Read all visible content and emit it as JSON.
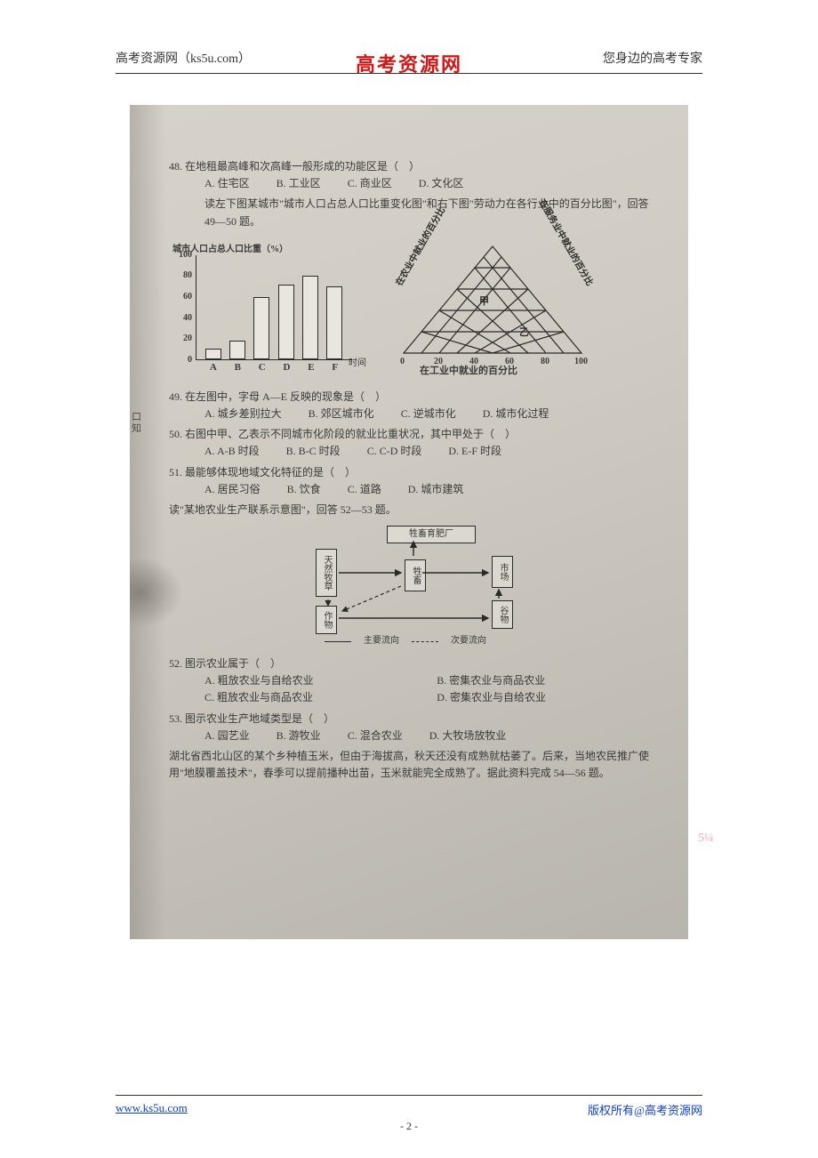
{
  "header": {
    "left": "高考资源网（ks5u.com）",
    "center": "高考资源网",
    "right": "您身边的高考专家"
  },
  "margin_note": {
    "l1": "口",
    "l2": "知"
  },
  "q48": {
    "stem": "48. 在地租最高峰和次高峰一般形成的功能区是（　）",
    "opts": {
      "a": "A. 住宅区",
      "b": "B. 工业区",
      "c": "C. 商业区",
      "d": "D. 文化区"
    }
  },
  "intro_49_50": "读左下图某城市\"城市人口占总人口比重变化图\"和右下图\"劳动力在各行业中的百分比图\"，回答 49—50 题。",
  "barchart": {
    "ylabel": "城市人口占总人口比重（%）",
    "yticks": [
      100,
      80,
      60,
      40,
      20,
      0
    ],
    "categories": [
      "A",
      "B",
      "C",
      "D",
      "E",
      "F"
    ],
    "values": [
      10,
      18,
      60,
      72,
      80,
      70
    ],
    "ymax": 100,
    "xcaption": "时间",
    "bar_border": "#2a2a28",
    "bar_fill": "#e8e6de"
  },
  "triangle": {
    "left_label": "在农业中就业的百分比",
    "right_label": "在服务业中就业的百分比",
    "bottom_label": "在工业中就业的百分比",
    "bottom_ticks": [
      0,
      20,
      40,
      60,
      80,
      100
    ],
    "side_ticks": [
      20,
      40,
      60,
      80,
      100
    ],
    "points": {
      "jia": "甲",
      "yi": "乙"
    },
    "stroke": "#2a2a28"
  },
  "q49": {
    "stem": "49. 在左图中，字母 A—E 反映的现象是（　）",
    "opts": {
      "a": "A. 城乡差别拉大",
      "b": "B. 郊区城市化",
      "c": "C. 逆城市化",
      "d": "D. 城市化过程"
    }
  },
  "q50": {
    "stem": "50. 右图中甲、乙表示不同城市化阶段的就业比重状况，其中甲处于（　）",
    "opts": {
      "a": "A. A-B 时段",
      "b": "B. B-C 时段",
      "c": "C. C-D 时段",
      "d": "D. E-F 时段"
    }
  },
  "q51": {
    "stem": "51. 最能够体现地域文化特征的是（　）",
    "opts": {
      "a": "A. 居民习俗",
      "b": "B. 饮食",
      "c": "C. 道路",
      "d": "D. 城市建筑"
    }
  },
  "intro_52_53": "读\"某地农业生产联系示意图\"，回答 52—53 题。",
  "flow": {
    "nodes": {
      "fert": "牲畜育肥厂",
      "pasture": "天然牧草",
      "animal": "牲畜",
      "market": "市场",
      "crop": "作物",
      "grain": "谷物"
    },
    "legend": {
      "main": "主要流向",
      "sub": "次要流向"
    },
    "stroke": "#2a2a28"
  },
  "q52": {
    "stem": "52. 图示农业属于（　）",
    "opts": {
      "a": "A. 粗放农业与自给农业",
      "b": "B. 密集农业与商品农业",
      "c": "C. 粗放农业与商品农业",
      "d": "D. 密集农业与自给农业"
    }
  },
  "q53": {
    "stem": "53. 图示农业生产地域类型是（　）",
    "opts": {
      "a": "A. 园艺业",
      "b": "B. 游牧业",
      "c": "C. 混合农业",
      "d": "D. 大牧场放牧业"
    }
  },
  "intro_54_56": "湖北省西北山区的某个乡种植玉米，但由于海拔高，秋天还没有成熟就枯萎了。后来，当地农民推广使用\"地膜覆盖技术\"，春季可以提前播种出苗，玉米就能完全成熟了。据此资料完成 54—56 题。",
  "right_anno": "5¼",
  "footer": {
    "left": "www.ks5u.com",
    "right": "版权所有@高考资源网",
    "page": "- 2 -"
  },
  "colors": {
    "brand_red": "#d01818",
    "link_blue": "#1040c8",
    "text": "#333333",
    "photo_bg_a": "#d7d2c9",
    "photo_bg_b": "#b8b5ad",
    "anno_pink": "#f3a7c4"
  }
}
